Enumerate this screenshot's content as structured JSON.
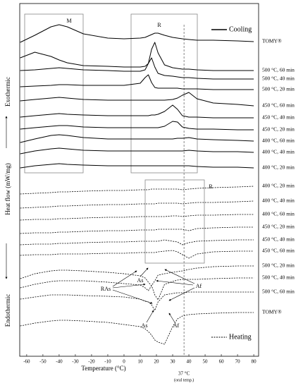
{
  "chart_data": {
    "type": "line",
    "xlabel": "Temperature (°C)",
    "y_annotations": {
      "top": "Exothermic",
      "middle": "Heat flow (mW/mg)",
      "bottom": "Endothermic"
    },
    "legend": [
      {
        "label": "Cooling",
        "line_style": "solid"
      },
      {
        "label": "Heating",
        "line_style": "dashed"
      }
    ],
    "annotations": {
      "M": "M",
      "R_cooling": "R",
      "R_heating": "R",
      "RAs": "RAs",
      "As_500": "As",
      "Af_500": "Af",
      "As_tomy": "As",
      "Af_tomy": "Af"
    },
    "reference_line": {
      "x": 37,
      "label": "37 °C",
      "note": "(oral temp.)"
    },
    "xlim": [
      -64.3,
      83
    ],
    "xticks": [
      -60,
      -50,
      -40,
      -30,
      -20,
      -10,
      0,
      10,
      20,
      30,
      40,
      50,
      60,
      70,
      80
    ],
    "ylim": [
      0,
      500
    ],
    "x": [
      -64,
      -55,
      -45,
      -40,
      -35,
      -25,
      -10,
      0,
      10,
      13,
      15,
      17,
      19,
      21,
      25,
      30,
      33,
      36,
      40,
      45,
      55,
      70,
      80
    ],
    "series": [
      {
        "name": "TOMY®",
        "line_style": "solid",
        "color": "#000000",
        "values": [
          445,
          455,
          467,
          470,
          467,
          457,
          451,
          450,
          451,
          452,
          454,
          456,
          458,
          458,
          455,
          452,
          451,
          450,
          449,
          448,
          448,
          447,
          446
        ]
      },
      {
        "name": "500 °C, 60 min",
        "line_style": "solid",
        "color": "#000000",
        "values": [
          423,
          431,
          425,
          420,
          416,
          412,
          411,
          410,
          410,
          411,
          415,
          435,
          445,
          430,
          413,
          409,
          408,
          407,
          407,
          406,
          405,
          405,
          405
        ]
      },
      {
        "name": "500 °C, 40 min",
        "line_style": "solid",
        "color": "#000000",
        "values": [
          405,
          406,
          408,
          409,
          408,
          406,
          405,
          404,
          404,
          406,
          415,
          423,
          410,
          401,
          398,
          397,
          396,
          395,
          395,
          394,
          393,
          393,
          393
        ]
      },
      {
        "name": "500 °C, 20 min",
        "line_style": "solid",
        "color": "#000000",
        "values": [
          382,
          383,
          384,
          385,
          385,
          384,
          384,
          384,
          387,
          395,
          399,
          388,
          381,
          380,
          380,
          380,
          380,
          379,
          379,
          379,
          378,
          378,
          378
        ]
      },
      {
        "name": "450 °C, 60 min",
        "line_style": "solid",
        "color": "#000000",
        "values": [
          362,
          364,
          366,
          367,
          366,
          364,
          363,
          363,
          363,
          363,
          363,
          363,
          363,
          363,
          363,
          364,
          366,
          370,
          374,
          365,
          359,
          357,
          355
        ]
      },
      {
        "name": "450 °C, 40 min",
        "line_style": "solid",
        "color": "#000000",
        "values": [
          339,
          341,
          343,
          344,
          343,
          342,
          341,
          341,
          341,
          341,
          341,
          342,
          342,
          343,
          347,
          356,
          350,
          341,
          339,
          339,
          338,
          338,
          338
        ]
      },
      {
        "name": "450 °C, 20 min",
        "line_style": "solid",
        "color": "#000000",
        "values": [
          322,
          324,
          326,
          327,
          327,
          325,
          324,
          324,
          324,
          324,
          324,
          324,
          324,
          324,
          326,
          333,
          332,
          325,
          323,
          322,
          322,
          321,
          321
        ]
      },
      {
        "name": "400 °C, 60 min",
        "line_style": "solid",
        "color": "#000000",
        "values": [
          303,
          308,
          313,
          314,
          313,
          310,
          308,
          308,
          308,
          308,
          308,
          308,
          308,
          308,
          308,
          308,
          309,
          309,
          310,
          308,
          307,
          306,
          305
        ]
      },
      {
        "name": "400 °C, 40 min",
        "line_style": "solid",
        "color": "#000000",
        "values": [
          287,
          291,
          294,
          295,
          294,
          292,
          291,
          291,
          291,
          291,
          291,
          291,
          291,
          291,
          291,
          291,
          291,
          291,
          292,
          291,
          290,
          290,
          289
        ]
      },
      {
        "name": "400 °C, 20 min",
        "line_style": "solid",
        "color": "#000000",
        "values": [
          267,
          270,
          272,
          273,
          272,
          271,
          270,
          270,
          270,
          270,
          270,
          270,
          270,
          270,
          270,
          270,
          270,
          270,
          270,
          269,
          268,
          268,
          267
        ]
      },
      {
        "name": "400 °C, 20 min",
        "line_style": "dashed",
        "color": "#000000",
        "values": [
          230,
          231,
          232,
          233,
          233,
          234,
          235,
          235,
          236,
          236,
          236,
          237,
          237,
          237,
          237,
          237,
          237,
          236,
          237,
          238,
          239,
          240,
          241
        ]
      },
      {
        "name": "400 °C, 40 min",
        "line_style": "dashed",
        "color": "#000000",
        "values": [
          210,
          211,
          212,
          213,
          213,
          214,
          215,
          215,
          216,
          216,
          216,
          216,
          216,
          217,
          217,
          217,
          217,
          216,
          217,
          218,
          218,
          219,
          220
        ]
      },
      {
        "name": "400 °C, 60 min",
        "line_style": "dashed",
        "color": "#000000",
        "values": [
          193,
          194,
          194,
          195,
          195,
          196,
          197,
          197,
          198,
          198,
          198,
          198,
          198,
          198,
          198,
          199,
          199,
          198,
          199,
          200,
          200,
          201,
          201
        ]
      },
      {
        "name": "450 °C, 20 min",
        "line_style": "dashed",
        "color": "#000000",
        "values": [
          174,
          175,
          175,
          176,
          176,
          177,
          178,
          178,
          179,
          179,
          179,
          179,
          179,
          180,
          180,
          180,
          180,
          180,
          178,
          181,
          182,
          183,
          183
        ]
      },
      {
        "name": "450 °C, 40 min",
        "line_style": "dashed",
        "color": "#000000",
        "values": [
          158,
          159,
          159,
          160,
          160,
          161,
          162,
          162,
          163,
          163,
          163,
          163,
          163,
          163,
          165,
          163,
          162,
          158,
          161,
          163,
          164,
          165,
          165
        ]
      },
      {
        "name": "450 °C, 60 min",
        "line_style": "dashed",
        "color": "#000000",
        "values": [
          143,
          144,
          144,
          145,
          145,
          145,
          146,
          146,
          147,
          147,
          147,
          147,
          147,
          148,
          149,
          150,
          148,
          144,
          139,
          145,
          148,
          149,
          149
        ]
      },
      {
        "name": "500 °C, 20 min",
        "line_style": "dashed",
        "color": "#000000",
        "values": [
          110,
          117,
          121,
          122,
          122,
          121,
          119,
          117,
          114,
          111,
          105,
          100,
          107,
          115,
          117,
          119,
          120,
          121,
          123,
          125,
          127,
          128,
          128
        ]
      },
      {
        "name": "500 °C, 40 min",
        "line_style": "dashed",
        "color": "#000000",
        "values": [
          97,
          102,
          106,
          107,
          107,
          107,
          105,
          103,
          101,
          97,
          93,
          100,
          87,
          80,
          102,
          106,
          108,
          109,
          109,
          109,
          110,
          111,
          111
        ]
      },
      {
        "name": "500 °C, 60 min",
        "line_style": "dashed",
        "color": "#000000",
        "values": [
          81,
          84,
          87,
          87,
          87,
          86,
          85,
          84,
          81,
          78,
          77,
          73,
          65,
          77,
          87,
          89,
          90,
          90,
          91,
          91,
          91,
          91,
          91
        ]
      },
      {
        "name": "TOMY®",
        "line_style": "dashed",
        "color": "#000000",
        "values": [
          43,
          47,
          50,
          51,
          51,
          50,
          48,
          45,
          42,
          39,
          35,
          30,
          23,
          20,
          17,
          42,
          53,
          57,
          59,
          60,
          61,
          62,
          62
        ]
      }
    ]
  }
}
